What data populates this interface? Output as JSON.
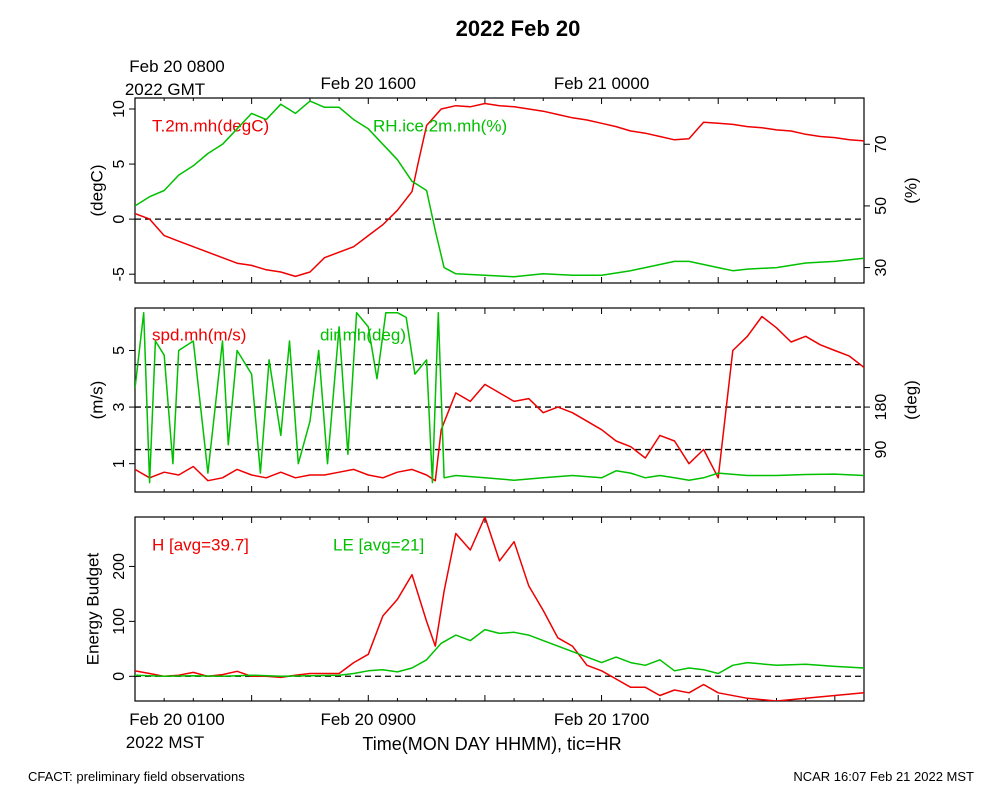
{
  "page": {
    "title": "2022 Feb 20",
    "footer_left": "CFACT: preliminary field observations",
    "footer_right": "NCAR 16:07 Feb 21 2022 MST"
  },
  "colors": {
    "series1": "#ee0000",
    "series2": "#00c000",
    "axis": "#000000"
  },
  "top_axis": {
    "ticks": [
      {
        "line1": "Feb 20 0800",
        "line2": "2022 GMT",
        "hour": 0
      },
      {
        "line1": "Feb 20 1600",
        "hour": 8
      },
      {
        "line1": "Feb 21 0000",
        "hour": 16
      }
    ]
  },
  "bottom_axis": {
    "ticks": [
      {
        "line1": "Feb 20 0100",
        "line2": "2022 MST",
        "hour": 0
      },
      {
        "line1": "Feb 20 0900",
        "hour": 8
      },
      {
        "line1": "Feb 20 1700",
        "hour": 16
      }
    ],
    "xlabel": "Time(MON DAY HHMM), tic=HR",
    "xlim_hours": [
      0,
      25
    ]
  },
  "chart_data": [
    {
      "type": "line",
      "left_ylabel": "(degC)",
      "right_ylabel": "(%)",
      "ylim_left": [
        -5.8,
        11
      ],
      "ylim_right": [
        25,
        85
      ],
      "left_ticks": [
        -5,
        0,
        5,
        10
      ],
      "right_ticks": [
        30,
        50,
        70
      ],
      "zero_line": 0,
      "series": [
        {
          "name": "T.2m.mh(degC)",
          "axis": "left",
          "color": "#ee0000",
          "x": [
            0,
            0.5,
            1,
            1.5,
            2,
            2.5,
            3,
            3.5,
            4,
            4.5,
            5,
            5.5,
            6,
            6.5,
            7,
            7.5,
            8,
            8.5,
            9,
            9.5,
            9.7,
            10,
            10.5,
            11,
            11.5,
            12,
            12.5,
            13,
            13.5,
            14,
            14.5,
            15,
            15.5,
            16,
            16.5,
            17,
            17.5,
            18,
            18.5,
            19,
            19.5,
            20,
            20.5,
            21,
            21.5,
            22,
            22.5,
            23,
            23.5,
            24,
            24.5,
            25
          ],
          "y": [
            0.5,
            0,
            -1.5,
            -2,
            -2.5,
            -3,
            -3.5,
            -4,
            -4.2,
            -4.6,
            -4.8,
            -5.2,
            -4.8,
            -3.5,
            -3,
            -2.5,
            -1.5,
            -0.5,
            0.8,
            2.5,
            5,
            8.5,
            10,
            10.3,
            10.2,
            10.5,
            10.3,
            10.2,
            10,
            9.8,
            9.5,
            9.2,
            9.0,
            8.7,
            8.4,
            8.0,
            7.8,
            7.5,
            7.2,
            7.3,
            8.8,
            8.7,
            8.6,
            8.4,
            8.3,
            8.1,
            8.0,
            7.7,
            7.5,
            7.4,
            7.2,
            7.1
          ]
        },
        {
          "name": "RH.ice.2m.mh(%)",
          "axis": "right",
          "color": "#00c000",
          "x": [
            0,
            0.5,
            1,
            1.5,
            2,
            2.5,
            3,
            3.5,
            4,
            4.5,
            5,
            5.5,
            6,
            6.5,
            7,
            7.5,
            8,
            8.5,
            9,
            9.5,
            10,
            10.3,
            10.6,
            11,
            12,
            13,
            14,
            15,
            16,
            17,
            17.5,
            18,
            18.5,
            19,
            20,
            20.5,
            21,
            22,
            23,
            24,
            25
          ],
          "y": [
            50,
            53,
            55,
            60,
            63,
            67,
            70,
            75,
            80,
            78,
            83,
            80,
            84,
            82,
            82,
            78,
            75,
            70,
            65,
            58,
            55,
            42,
            30,
            28,
            27.5,
            27,
            28,
            27.5,
            27.5,
            29,
            30,
            31,
            32,
            32,
            30,
            29,
            29.5,
            30,
            31.5,
            32,
            33
          ]
        }
      ]
    },
    {
      "type": "line",
      "left_ylabel": "(m/s)",
      "right_ylabel": "(deg)",
      "ylim_left": [
        0,
        6.5
      ],
      "ylim_right": [
        0,
        390
      ],
      "left_ticks": [
        1,
        3,
        5
      ],
      "right_ticks": [
        90,
        180
      ],
      "dashed_right_values": [
        90,
        180,
        270
      ],
      "series": [
        {
          "name": "spd.mh(m/s)",
          "axis": "left",
          "color": "#ee0000",
          "x": [
            0,
            0.5,
            1,
            1.5,
            2,
            2.5,
            3,
            3.5,
            4,
            4.5,
            5,
            5.5,
            6,
            6.5,
            7,
            7.5,
            8,
            8.5,
            9,
            9.5,
            10,
            10.3,
            10.5,
            11,
            11.5,
            12,
            12.5,
            13,
            13.5,
            14,
            14.5,
            15,
            15.5,
            16,
            16.5,
            17,
            17.5,
            18,
            18.5,
            19,
            19.5,
            20,
            20.5,
            21,
            21.5,
            22,
            22.5,
            23,
            23.5,
            24,
            24.5,
            25
          ],
          "y": [
            0.8,
            0.5,
            0.7,
            0.6,
            0.9,
            0.4,
            0.5,
            0.8,
            0.6,
            0.5,
            0.7,
            0.5,
            0.6,
            0.6,
            0.7,
            0.8,
            0.6,
            0.5,
            0.7,
            0.8,
            0.6,
            0.4,
            2.2,
            3.5,
            3.2,
            3.8,
            3.5,
            3.2,
            3.3,
            2.8,
            3.0,
            2.8,
            2.5,
            2.2,
            1.8,
            1.6,
            1.2,
            2.0,
            1.8,
            1.0,
            1.5,
            0.5,
            5.0,
            5.5,
            6.2,
            5.8,
            5.3,
            5.5,
            5.2,
            5.0,
            4.8,
            4.4
          ]
        },
        {
          "name": "dir.mh(deg)",
          "axis": "right",
          "color": "#00c000",
          "x": [
            0,
            0.3,
            0.5,
            0.7,
            1,
            1.3,
            1.5,
            2,
            2.5,
            3,
            3.2,
            3.5,
            4,
            4.3,
            4.6,
            5,
            5.3,
            5.6,
            6,
            6.3,
            6.6,
            7,
            7.3,
            7.6,
            8,
            8.3,
            8.6,
            9,
            9.3,
            9.6,
            10,
            10.2,
            10.4,
            10.6,
            11,
            12,
            13,
            14,
            15,
            16,
            16.5,
            17,
            17.5,
            18,
            18.5,
            19,
            19.5,
            20,
            21,
            22,
            23,
            24,
            25
          ],
          "y": [
            220,
            380,
            20,
            320,
            290,
            60,
            300,
            320,
            40,
            320,
            100,
            300,
            250,
            40,
            280,
            120,
            320,
            60,
            150,
            300,
            60,
            350,
            80,
            380,
            350,
            240,
            380,
            380,
            370,
            250,
            280,
            20,
            380,
            30,
            35,
            30,
            25,
            30,
            35,
            30,
            45,
            40,
            30,
            35,
            30,
            25,
            30,
            40,
            35,
            35,
            37,
            38,
            35
          ]
        }
      ]
    },
    {
      "type": "line",
      "left_ylabel": "Energy Budget",
      "ylim_left": [
        -45,
        290
      ],
      "left_ticks": [
        0,
        100,
        200
      ],
      "zero_line": 0,
      "series": [
        {
          "name": "H [avg=39.7]",
          "axis": "left",
          "color": "#ee0000",
          "x": [
            0,
            0.5,
            1,
            1.5,
            2,
            2.5,
            3,
            3.5,
            4,
            4.5,
            5,
            5.5,
            6,
            6.5,
            7,
            7.5,
            8,
            8.5,
            9,
            9.5,
            10,
            10.3,
            10.6,
            11,
            11.5,
            12,
            12.5,
            13,
            13.5,
            14,
            14.5,
            15,
            15.5,
            16,
            16.5,
            17,
            17.5,
            18,
            18.5,
            19,
            19.5,
            20,
            21,
            22,
            23,
            24,
            25
          ],
          "y": [
            10,
            5,
            0,
            2,
            7,
            0,
            3,
            9,
            0,
            0,
            -2,
            2,
            5,
            5,
            5,
            25,
            40,
            110,
            140,
            185,
            100,
            55,
            155,
            260,
            230,
            290,
            210,
            245,
            165,
            120,
            70,
            55,
            20,
            10,
            -5,
            -20,
            -20,
            -35,
            -25,
            -30,
            -15,
            -30,
            -40,
            -45,
            -40,
            -35,
            -30
          ]
        },
        {
          "name": "LE [avg=21]",
          "axis": "left",
          "color": "#00c000",
          "x": [
            0,
            1,
            2,
            3,
            4,
            5,
            6,
            7,
            7.5,
            8,
            8.5,
            9,
            9.5,
            10,
            10.5,
            11,
            11.5,
            12,
            12.5,
            13,
            13.5,
            14,
            14.5,
            15,
            15.5,
            16,
            16.5,
            17,
            17.5,
            18,
            18.5,
            19,
            19.5,
            20,
            20.5,
            21,
            22,
            23,
            24,
            25
          ],
          "y": [
            2,
            0,
            1,
            0,
            2,
            0,
            1,
            2,
            5,
            10,
            12,
            8,
            15,
            30,
            60,
            75,
            65,
            85,
            78,
            80,
            75,
            65,
            55,
            45,
            35,
            25,
            35,
            25,
            20,
            30,
            10,
            15,
            12,
            5,
            20,
            25,
            20,
            22,
            18,
            15
          ]
        }
      ]
    }
  ]
}
